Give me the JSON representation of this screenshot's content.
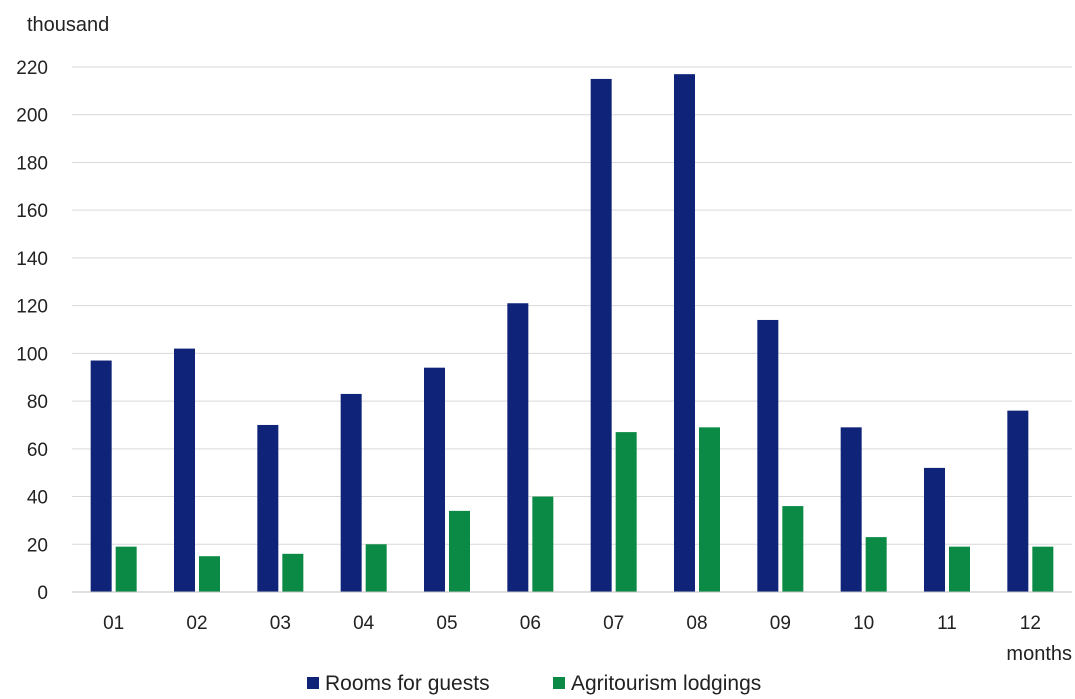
{
  "chart_data": {
    "type": "bar",
    "title": "",
    "ylabel": "thousand",
    "xlabel": "months",
    "categories": [
      "01",
      "02",
      "03",
      "04",
      "05",
      "06",
      "07",
      "08",
      "09",
      "10",
      "11",
      "12"
    ],
    "series": [
      {
        "name": "Rooms for guests",
        "color": "#0f2479",
        "values": [
          97,
          102,
          70,
          83,
          94,
          121,
          215,
          217,
          114,
          69,
          52,
          76
        ]
      },
      {
        "name": "Agritourism lodgings",
        "color": "#0a8a45",
        "values": [
          19,
          15,
          16,
          20,
          34,
          40,
          67,
          69,
          36,
          23,
          19,
          19
        ]
      }
    ],
    "ylim": [
      0,
      220
    ],
    "yticks": [
      0,
      20,
      40,
      60,
      80,
      100,
      120,
      140,
      160,
      180,
      200,
      220
    ],
    "grid": true,
    "legend": "bottom"
  }
}
